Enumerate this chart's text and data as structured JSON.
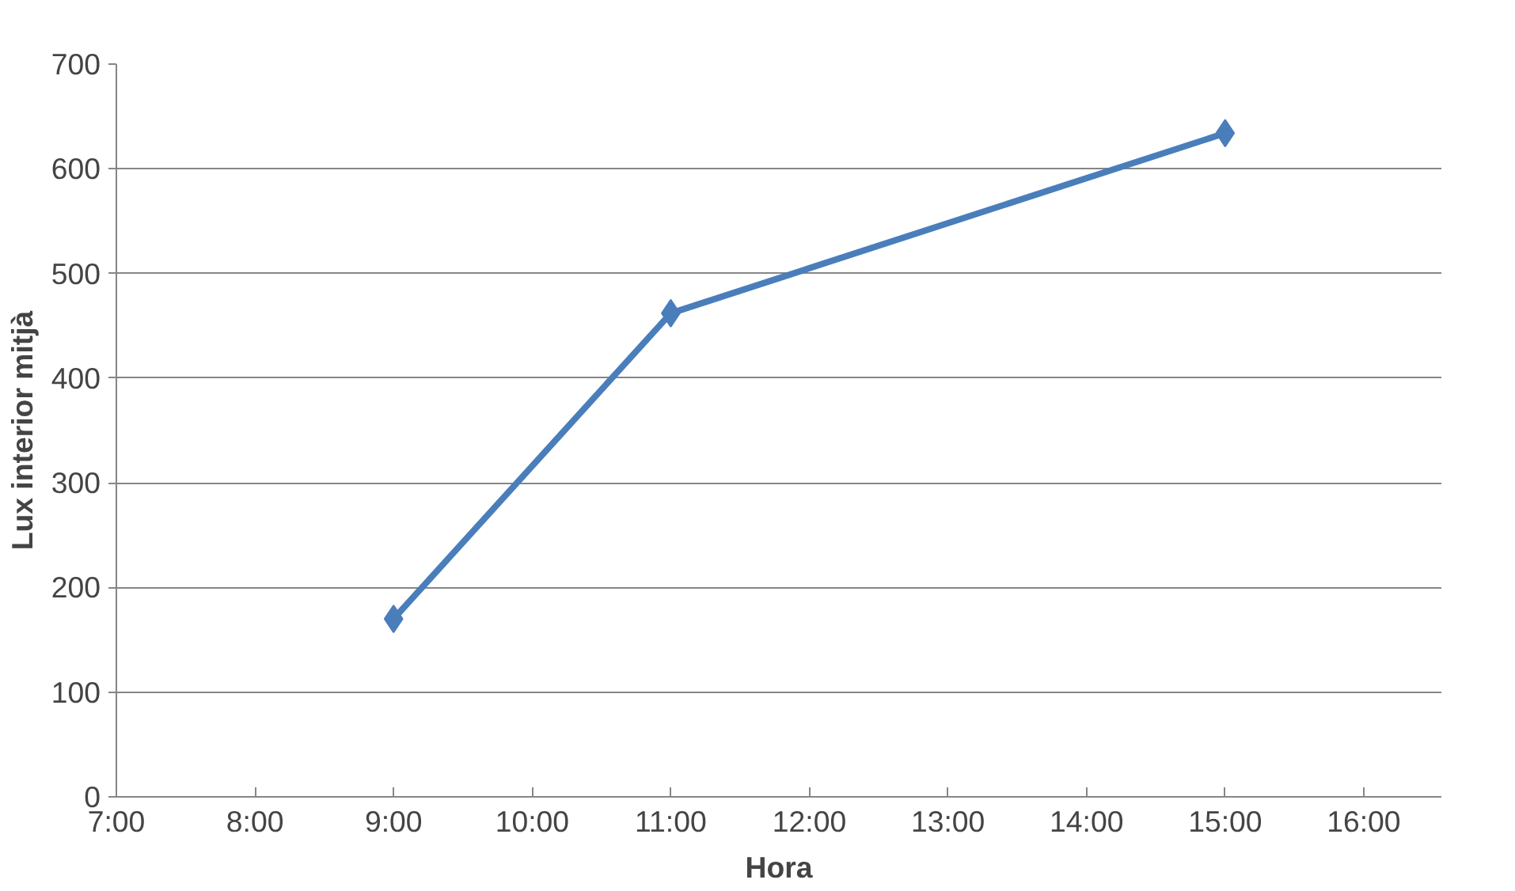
{
  "chart_data": {
    "type": "line",
    "xlabel": "Hora",
    "ylabel": "Lux interior mitjà",
    "x": [
      9,
      11,
      15
    ],
    "series": [
      {
        "color": "#4a7ebb",
        "values": [
          170,
          462,
          634
        ]
      }
    ],
    "xlim": [
      7,
      16.56
    ],
    "xticks": [
      {
        "value": 7,
        "label": "7:00"
      },
      {
        "value": 8,
        "label": "8:00"
      },
      {
        "value": 9,
        "label": "9:00"
      },
      {
        "value": 10,
        "label": "10:00"
      },
      {
        "value": 11,
        "label": "11:00"
      },
      {
        "value": 12,
        "label": "12:00"
      },
      {
        "value": 13,
        "label": "13:00"
      },
      {
        "value": 14,
        "label": "14:00"
      },
      {
        "value": 15,
        "label": "15:00"
      },
      {
        "value": 16,
        "label": "16:00"
      }
    ],
    "ylim": [
      0,
      700
    ],
    "yticks": [
      0,
      100,
      200,
      300,
      400,
      500,
      600,
      700
    ],
    "grid": "y",
    "marker": "diamond",
    "line_style": "solid"
  }
}
